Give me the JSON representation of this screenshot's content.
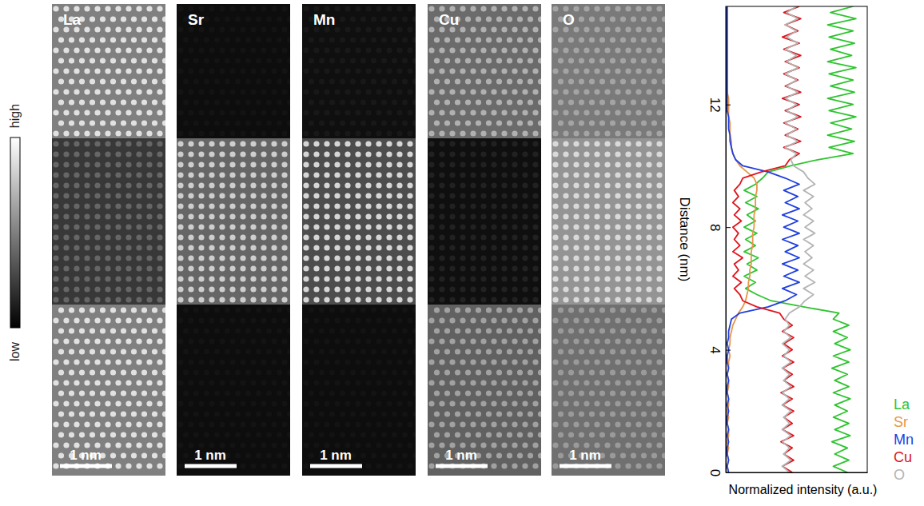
{
  "panels": [
    {
      "label": "La",
      "scale_bar": "1 nm"
    },
    {
      "label": "Sr",
      "scale_bar": "1 nm"
    },
    {
      "label": "Mn",
      "scale_bar": "1 nm"
    },
    {
      "label": "Cu",
      "scale_bar": "1 nm"
    },
    {
      "label": "O",
      "scale_bar": "1 nm"
    }
  ],
  "colorbar": {
    "high": "high",
    "low": "low"
  },
  "chart_data": {
    "type": "line",
    "orientation": "horizontal",
    "x_label": "Distance (nm)",
    "y_label": "Normalized intensity (a.u.)",
    "xlim": [
      0,
      15.2
    ],
    "xticks": [
      0,
      4,
      8,
      12
    ],
    "ylim": [
      0,
      1
    ],
    "tick_labels": "x",
    "grid": false,
    "legend": "right",
    "x": [
      0,
      0.2,
      0.4,
      0.6,
      0.8,
      1,
      1.2,
      1.4,
      1.6,
      1.8,
      2,
      2.2,
      2.4,
      2.6,
      2.8,
      3,
      3.2,
      3.4,
      3.6,
      3.8,
      4,
      4.2,
      4.4,
      4.6,
      4.8,
      5,
      5.2,
      5.4,
      5.6,
      5.8,
      6,
      6.2,
      6.4,
      6.6,
      6.8,
      7,
      7.2,
      7.4,
      7.6,
      7.8,
      8,
      8.2,
      8.4,
      8.6,
      8.8,
      9,
      9.2,
      9.4,
      9.6,
      9.8,
      10,
      10.2,
      10.4,
      10.6,
      10.8,
      11,
      11.2,
      11.4,
      11.6,
      11.8,
      12,
      12.2,
      12.4,
      12.6,
      12.8,
      13,
      13.2,
      13.4,
      13.6,
      13.8,
      14,
      14.2,
      14.4,
      14.6,
      14.8,
      15,
      15.2
    ],
    "series": [
      {
        "name": "La",
        "color": "#2ec42e",
        "values": [
          0.86,
          0.76,
          0.87,
          0.77,
          0.86,
          0.75,
          0.88,
          0.77,
          0.87,
          0.76,
          0.86,
          0.77,
          0.88,
          0.76,
          0.87,
          0.77,
          0.86,
          0.75,
          0.87,
          0.76,
          0.88,
          0.77,
          0.86,
          0.76,
          0.87,
          0.76,
          0.8,
          0.55,
          0.32,
          0.22,
          0.14,
          0.21,
          0.13,
          0.22,
          0.15,
          0.23,
          0.13,
          0.21,
          0.14,
          0.22,
          0.13,
          0.21,
          0.15,
          0.23,
          0.14,
          0.22,
          0.13,
          0.21,
          0.26,
          0.3,
          0.46,
          0.65,
          0.9,
          0.73,
          0.91,
          0.72,
          0.89,
          0.74,
          0.92,
          0.73,
          0.9,
          0.72,
          0.91,
          0.74,
          0.9,
          0.73,
          0.92,
          0.72,
          0.89,
          0.74,
          0.91,
          0.73,
          0.9,
          0.72,
          0.92,
          0.74,
          0.9
        ]
      },
      {
        "name": "Sr",
        "color": "#e8964c",
        "values": [
          0.02,
          0.01,
          0.02,
          0.01,
          0.02,
          0.01,
          0.02,
          0.02,
          0.01,
          0.02,
          0.01,
          0.02,
          0.02,
          0.01,
          0.02,
          0.02,
          0.01,
          0.02,
          0.02,
          0.03,
          0.02,
          0.03,
          0.03,
          0.04,
          0.05,
          0.07,
          0.09,
          0.12,
          0.14,
          0.15,
          0.16,
          0.16,
          0.17,
          0.17,
          0.18,
          0.18,
          0.18,
          0.19,
          0.19,
          0.19,
          0.2,
          0.2,
          0.2,
          0.21,
          0.21,
          0.21,
          0.22,
          0.22,
          0.2,
          0.15,
          0.1,
          0.07,
          0.05,
          0.04,
          0.04,
          0.03,
          0.03,
          0.03,
          0.02,
          0.02,
          0.02,
          0.02,
          0.01,
          0.01,
          0.01,
          0.01,
          0.01,
          0.01,
          0.01,
          0.01,
          0.01,
          0.01,
          0.01,
          0.01,
          0.01,
          0.01,
          0.01
        ]
      },
      {
        "name": "Mn",
        "color": "#1f3fe0",
        "values": [
          0.02,
          0.01,
          0.02,
          0.01,
          0.01,
          0.02,
          0.01,
          0.02,
          0.01,
          0.01,
          0.02,
          0.01,
          0.02,
          0.01,
          0.01,
          0.02,
          0.01,
          0.02,
          0.01,
          0.01,
          0.02,
          0.01,
          0.02,
          0.02,
          0.03,
          0.04,
          0.1,
          0.3,
          0.42,
          0.5,
          0.4,
          0.52,
          0.41,
          0.51,
          0.4,
          0.52,
          0.42,
          0.51,
          0.4,
          0.52,
          0.41,
          0.51,
          0.4,
          0.52,
          0.42,
          0.51,
          0.41,
          0.52,
          0.42,
          0.3,
          0.12,
          0.07,
          0.05,
          0.04,
          0.03,
          0.03,
          0.02,
          0.02,
          0.02,
          0.01,
          0.01,
          0.01,
          0.01,
          0.01,
          0.01,
          0.01,
          0.01,
          0.01,
          0.01,
          0.01,
          0.01,
          0.01,
          0.01,
          0.01,
          0.01,
          0.01,
          0.01
        ]
      },
      {
        "name": "Cu",
        "color": "#e0141c",
        "values": [
          0.47,
          0.4,
          0.48,
          0.41,
          0.47,
          0.39,
          0.48,
          0.4,
          0.47,
          0.41,
          0.48,
          0.4,
          0.47,
          0.39,
          0.48,
          0.41,
          0.47,
          0.4,
          0.48,
          0.4,
          0.47,
          0.41,
          0.48,
          0.4,
          0.47,
          0.41,
          0.38,
          0.22,
          0.12,
          0.1,
          0.06,
          0.11,
          0.05,
          0.09,
          0.06,
          0.12,
          0.05,
          0.1,
          0.06,
          0.09,
          0.05,
          0.11,
          0.06,
          0.1,
          0.05,
          0.09,
          0.06,
          0.1,
          0.12,
          0.25,
          0.42,
          0.45,
          0.52,
          0.41,
          0.53,
          0.42,
          0.51,
          0.41,
          0.53,
          0.42,
          0.52,
          0.4,
          0.53,
          0.42,
          0.51,
          0.41,
          0.52,
          0.42,
          0.53,
          0.41,
          0.52,
          0.4,
          0.51,
          0.42,
          0.53,
          0.41,
          0.52
        ]
      },
      {
        "name": "O",
        "color": "#b4b4b4",
        "values": [
          0.45,
          0.4,
          0.46,
          0.41,
          0.45,
          0.4,
          0.46,
          0.4,
          0.45,
          0.41,
          0.46,
          0.4,
          0.45,
          0.4,
          0.46,
          0.41,
          0.45,
          0.4,
          0.46,
          0.41,
          0.45,
          0.4,
          0.46,
          0.41,
          0.45,
          0.42,
          0.45,
          0.52,
          0.56,
          0.62,
          0.55,
          0.63,
          0.56,
          0.62,
          0.55,
          0.61,
          0.56,
          0.62,
          0.55,
          0.63,
          0.56,
          0.62,
          0.55,
          0.61,
          0.56,
          0.62,
          0.55,
          0.63,
          0.58,
          0.55,
          0.48,
          0.46,
          0.5,
          0.42,
          0.51,
          0.43,
          0.5,
          0.42,
          0.51,
          0.43,
          0.5,
          0.42,
          0.51,
          0.43,
          0.5,
          0.42,
          0.51,
          0.43,
          0.5,
          0.42,
          0.51,
          0.43,
          0.5,
          0.42,
          0.51,
          0.43,
          0.5
        ]
      }
    ]
  }
}
